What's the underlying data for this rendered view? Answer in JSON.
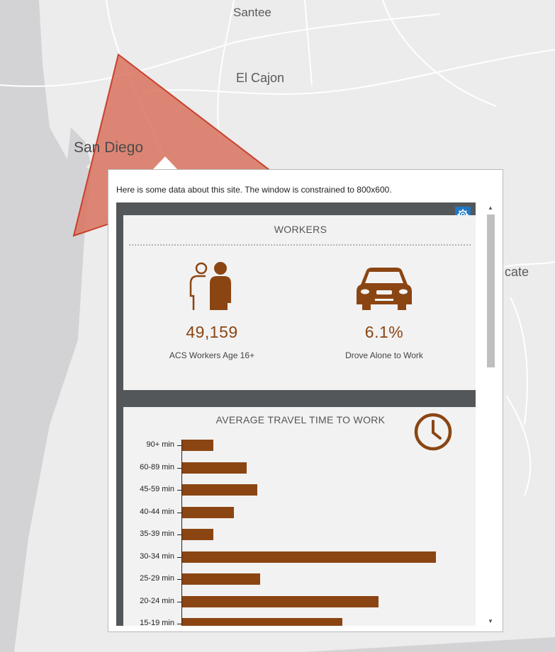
{
  "map": {
    "colors": {
      "land": "#ececec",
      "water": "#d3d3d6",
      "roads": "#ffffff",
      "polygon_fill": "#d9735f",
      "polygon_stroke": "#c8402e"
    },
    "labels": [
      "Santee",
      "El Cajon",
      "San Diego",
      "cate"
    ]
  },
  "popup": {
    "description": "Here is some data about this site. The window is constrained to 800x600.",
    "settings_icon": "gear-icon"
  },
  "workers_panel": {
    "title": "WORKERS",
    "workers_icon": "people-icon",
    "workers_value": "49,159",
    "workers_label": "ACS Workers Age 16+",
    "drove_icon": "car-icon",
    "drove_value": "6.1%",
    "drove_label": "Drove Alone to Work",
    "accent_color": "#8b4513"
  },
  "travel_panel": {
    "title": "AVERAGE TRAVEL TIME TO WORK",
    "clock_icon": "clock-icon"
  },
  "chart_data": {
    "type": "bar",
    "orientation": "horizontal",
    "categories": [
      "90+ min",
      "60-89 min",
      "45-59 min",
      "40-44 min",
      "35-39 min",
      "30-34 min",
      "25-29 min",
      "20-24 min",
      "15-19 min"
    ],
    "values": [
      12,
      25,
      29,
      20,
      12,
      98,
      30,
      76,
      62
    ],
    "xlim": [
      0,
      100
    ],
    "bar_color": "#8b4513",
    "title": "AVERAGE TRAVEL TIME TO WORK"
  }
}
